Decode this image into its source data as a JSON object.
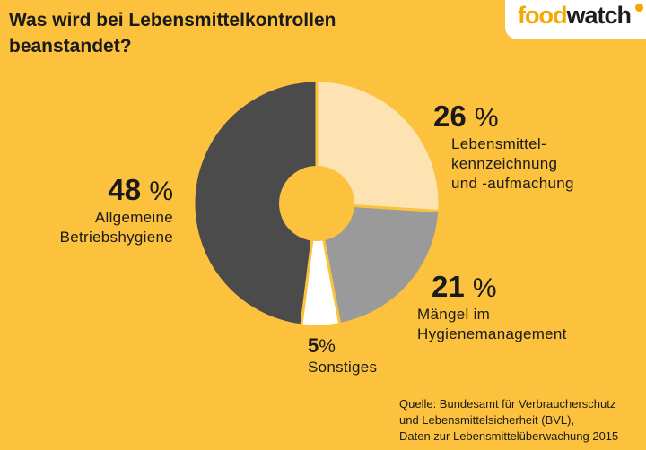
{
  "header": {
    "title_line1": "Was wird bei Lebensmittelkontrollen",
    "title_line2": "beanstandet?"
  },
  "logo": {
    "part1": "food",
    "part2": "watch"
  },
  "chart_data": {
    "type": "pie",
    "donut": true,
    "title": "Was wird bei Lebensmittelkontrollen beanstandet?",
    "categories": [
      "Lebensmittelkennzeichnung und -aufmachung",
      "Mängel im Hygienemanagement",
      "Sonstiges",
      "Allgemeine Betriebshygiene"
    ],
    "values": [
      26,
      21,
      5,
      48
    ],
    "unit": "%",
    "colors": [
      "#fde3b1",
      "#9a9a9a",
      "#ffffff",
      "#4b4b4b"
    ]
  },
  "labels": {
    "s48": {
      "value": "48",
      "sign": "%",
      "lines": [
        "Allgemeine",
        "Betriebshygiene"
      ]
    },
    "s26": {
      "value": "26",
      "sign": "%",
      "lines": [
        "Lebensmittel-",
        "kennzeichnung",
        "und -aufmachung"
      ]
    },
    "s21": {
      "value": "21",
      "sign": "%",
      "lines": [
        "Mängel im",
        "Hygienemanagement"
      ]
    },
    "s5": {
      "value": "5",
      "sign": "%",
      "lines": [
        "Sonstiges"
      ]
    }
  },
  "source": {
    "lines": [
      "Quelle: Bundesamt für Verbraucherschutz",
      "und Lebensmittelsicherheit (BVL),",
      "Daten zur Lebensmittelüberwachung 2015"
    ]
  },
  "colors": {
    "background": "#fcc23d",
    "logo_orange": "#f4a800",
    "text": "#1a1a1a"
  }
}
